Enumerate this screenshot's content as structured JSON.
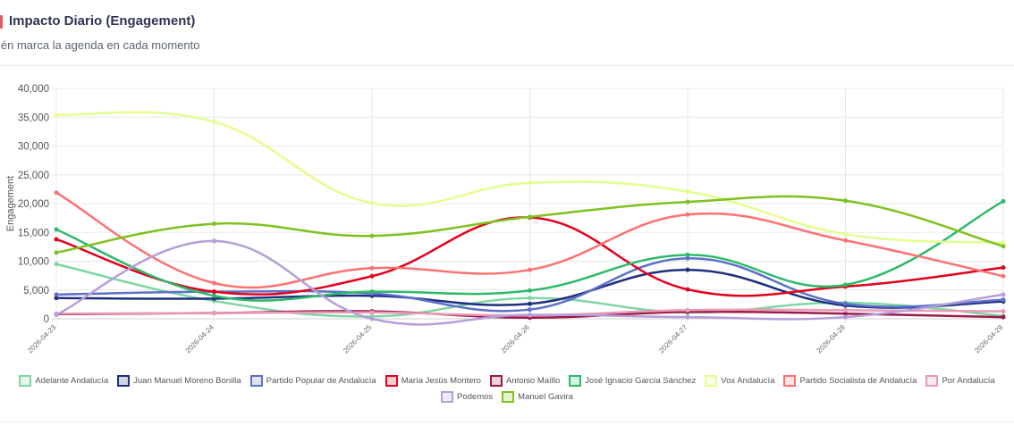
{
  "header": {
    "title": "Impacto Diario (Engagement)",
    "subtitle": "ién marca la agenda en cada momento",
    "icon": "calendar-icon"
  },
  "chart_data": {
    "type": "line",
    "title": "",
    "xlabel": "",
    "ylabel": "Engagement",
    "ylim": [
      0,
      40000
    ],
    "yticks": [
      "0",
      "5,000",
      "10,000",
      "15,000",
      "20,000",
      "25,000",
      "30,000",
      "35,000",
      "40,000"
    ],
    "ytick_values": [
      0,
      5000,
      10000,
      15000,
      20000,
      25000,
      30000,
      35000,
      40000
    ],
    "grid": true,
    "smooth": true,
    "legend_position": "bottom",
    "categories": [
      "2026-04-23",
      "2026-04-24",
      "2026-04-25",
      "2026-04-26",
      "2026-04-27",
      "2026-04-28",
      "2026-04-29"
    ],
    "series": [
      {
        "name": "Adelante Andalucía",
        "color": "#7fd6a2",
        "values": [
          9500,
          3100,
          400,
          3600,
          1100,
          2800,
          500
        ]
      },
      {
        "name": "Juan Manuel Moreno Bonilla",
        "color": "#1f2f7f",
        "values": [
          3600,
          3500,
          4000,
          2600,
          8500,
          2300,
          3000
        ]
      },
      {
        "name": "Partido Popular de Andalucía",
        "color": "#5c70c8",
        "values": [
          4200,
          4700,
          4400,
          1600,
          10500,
          2600,
          3300
        ]
      },
      {
        "name": "María Jesús Montero",
        "color": "#e3001b",
        "values": [
          13800,
          4700,
          7400,
          17600,
          5100,
          5600,
          8900
        ]
      },
      {
        "name": "Antonio Maíllo",
        "color": "#9a1a4a",
        "values": [
          800,
          1000,
          1300,
          200,
          1200,
          900,
          300
        ]
      },
      {
        "name": "José Ignacio García Sánchez",
        "color": "#2eb96a",
        "values": [
          15500,
          4000,
          4700,
          4900,
          11100,
          5900,
          20400
        ]
      },
      {
        "name": "Vox Andalucía",
        "color": "#e2ff8f",
        "values": [
          35400,
          34200,
          20100,
          23600,
          22100,
          14700,
          13200
        ]
      },
      {
        "name": "Partido Socialista de Andalucía",
        "color": "#ff7171",
        "values": [
          21900,
          6200,
          8800,
          8500,
          18100,
          13600,
          7400
        ]
      },
      {
        "name": "Por Andalucía",
        "color": "#e99ab6",
        "values": [
          900,
          1000,
          1100,
          600,
          1500,
          1500,
          1300
        ]
      },
      {
        "name": "Podemos",
        "color": "#b59ed9",
        "values": [
          700,
          13500,
          0,
          700,
          300,
          300,
          4200
        ]
      },
      {
        "name": "Manuel Gavira",
        "color": "#7dc21f",
        "values": [
          11500,
          16500,
          14400,
          17700,
          20300,
          20500,
          12600
        ]
      }
    ]
  }
}
